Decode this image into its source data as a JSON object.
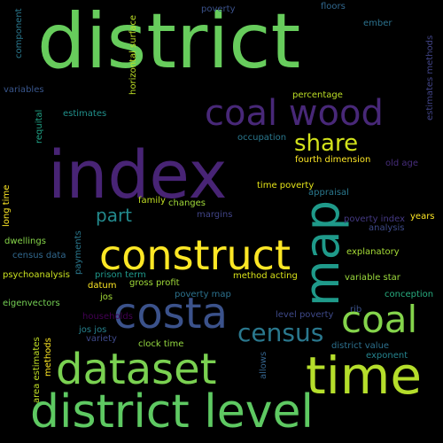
{
  "word_cloud": {
    "words": [
      {
        "text": "district",
        "color": "#67cc5c"
      },
      {
        "text": "index",
        "color": "#482475"
      },
      {
        "text": "district level",
        "color": "#5ec962"
      },
      {
        "text": "time",
        "color": "#b5de2b"
      },
      {
        "text": "map",
        "color": "#1f9a8a"
      },
      {
        "text": "construct",
        "color": "#fde725"
      },
      {
        "text": "dataset",
        "color": "#7ad151"
      },
      {
        "text": "costa",
        "color": "#3b528b"
      },
      {
        "text": "coal wood",
        "color": "#482878"
      },
      {
        "text": "coal",
        "color": "#84d44b"
      },
      {
        "text": "census",
        "color": "#2a788e"
      },
      {
        "text": "share",
        "color": "#d2e21b"
      },
      {
        "text": "part",
        "color": "#238a8d"
      },
      {
        "text": "fourth dimension",
        "color": "#fde725"
      },
      {
        "text": "horizontal surface",
        "color": "#bddf26"
      },
      {
        "text": "poverty",
        "color": "#3b528b"
      },
      {
        "text": "floors",
        "color": "#31688e"
      },
      {
        "text": "ember",
        "color": "#2c728e"
      },
      {
        "text": "component",
        "color": "#2a788e"
      },
      {
        "text": "variables",
        "color": "#39568c"
      },
      {
        "text": "estimates methods",
        "color": "#414487"
      },
      {
        "text": "requital",
        "color": "#20a386"
      },
      {
        "text": "estimates",
        "color": "#21918c"
      },
      {
        "text": "percentage",
        "color": "#bddf26"
      },
      {
        "text": "occupation",
        "color": "#2a788e"
      },
      {
        "text": "old age",
        "color": "#472d7b"
      },
      {
        "text": "long time",
        "color": "#fde725"
      },
      {
        "text": "time poverty",
        "color": "#e5e419"
      },
      {
        "text": "appraisal",
        "color": "#2a788e"
      },
      {
        "text": "family",
        "color": "#c2df23"
      },
      {
        "text": "changes",
        "color": "#a0da39"
      },
      {
        "text": "margins",
        "color": "#414487"
      },
      {
        "text": "poverty index",
        "color": "#443983"
      },
      {
        "text": "years",
        "color": "#fde725"
      },
      {
        "text": "analysis",
        "color": "#3e4a89"
      },
      {
        "text": "dwellings",
        "color": "#86d549"
      },
      {
        "text": "payments",
        "color": "#2a788e"
      },
      {
        "text": "census data",
        "color": "#31688e"
      },
      {
        "text": "explanatory",
        "color": "#a5db36"
      },
      {
        "text": "psychoanalysis",
        "color": "#c8e020"
      },
      {
        "text": "prison term",
        "color": "#1f988b"
      },
      {
        "text": "datum",
        "color": "#fde725"
      },
      {
        "text": "gross profit",
        "color": "#a0da39"
      },
      {
        "text": "method acting",
        "color": "#d8e219"
      },
      {
        "text": "variable star",
        "color": "#9bd93c"
      },
      {
        "text": "jos",
        "color": "#a2da37"
      },
      {
        "text": "poverty map",
        "color": "#2c728e"
      },
      {
        "text": "conception",
        "color": "#28ae80"
      },
      {
        "text": "eigenvectors",
        "color": "#75d054"
      },
      {
        "text": "households",
        "color": "#440154"
      },
      {
        "text": "level poverty",
        "color": "#3e4989"
      },
      {
        "text": "rib",
        "color": "#3b528b"
      },
      {
        "text": "jos jos",
        "color": "#26828e"
      },
      {
        "text": "variety",
        "color": "#3e4989"
      },
      {
        "text": "clock time",
        "color": "#94d840"
      },
      {
        "text": "district value",
        "color": "#2d708e"
      },
      {
        "text": "exponent",
        "color": "#25838e"
      },
      {
        "text": "area estimates",
        "color": "#c0df25"
      },
      {
        "text": "methods",
        "color": "#fde725"
      },
      {
        "text": "allows",
        "color": "#33638d"
      }
    ]
  }
}
